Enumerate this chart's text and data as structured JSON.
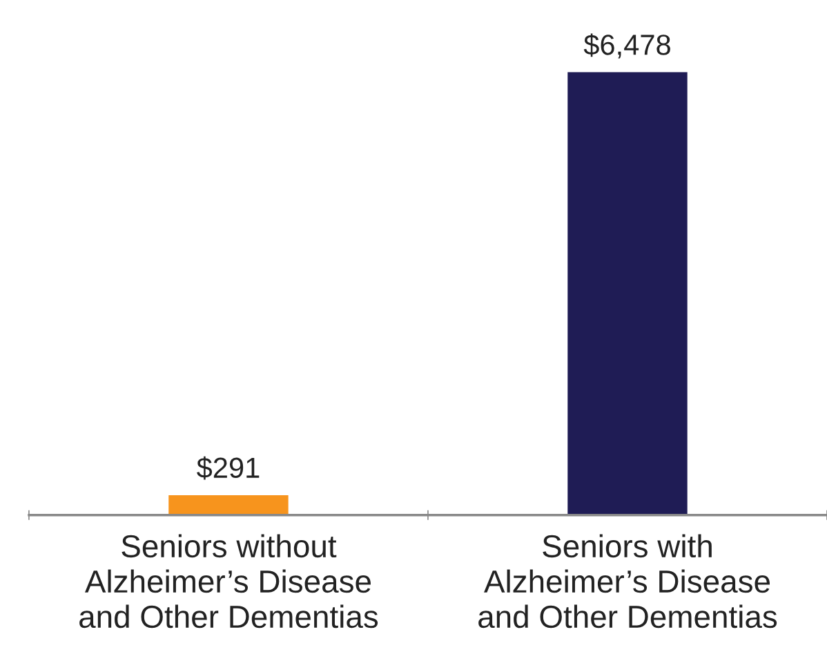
{
  "chart_data": {
    "type": "bar",
    "categories": [
      "Seniors without\nAlzheimer’s Disease\nand Other Dementias",
      "Seniors with\nAlzheimer’s Disease\nand Other Dementias"
    ],
    "values": [
      291,
      6478
    ],
    "colors": [
      "#f7941d",
      "#1f1c55"
    ],
    "value_labels": [
      "$291",
      "$6,478"
    ]
  }
}
